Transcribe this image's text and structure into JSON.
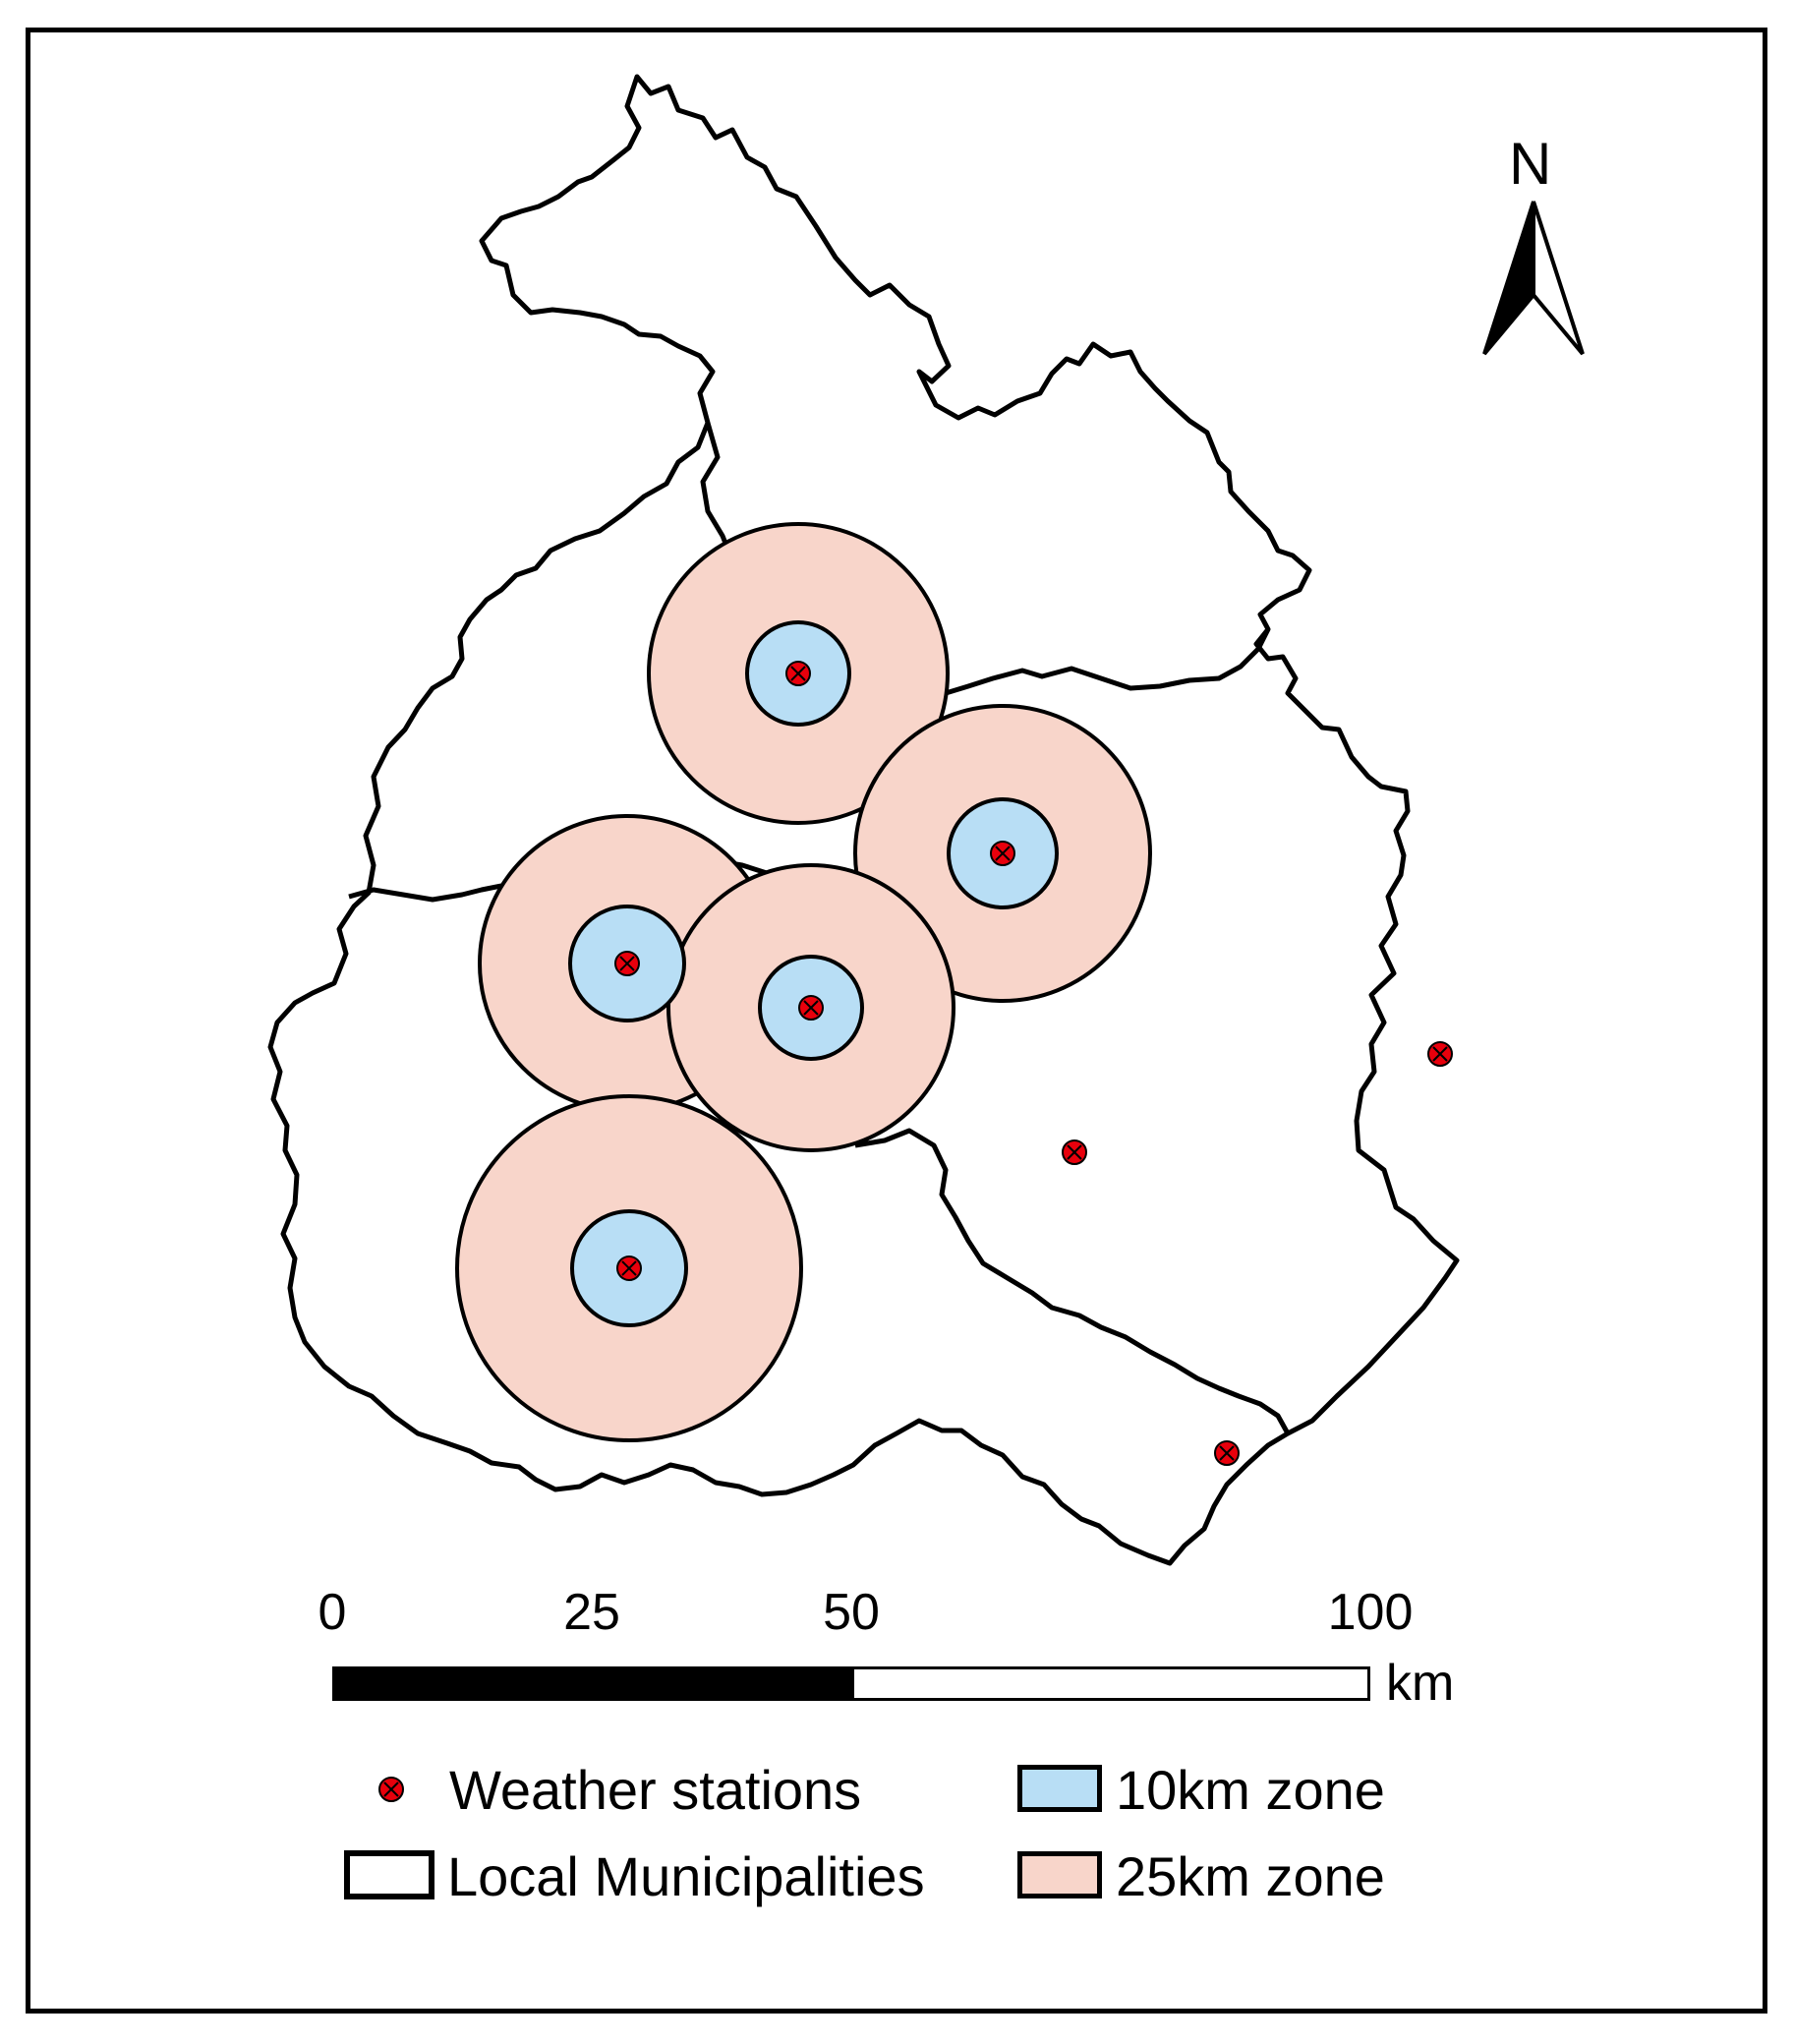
{
  "north_arrow": {
    "label": "N"
  },
  "scale_bar": {
    "ticks": [
      "0",
      "25",
      "50",
      "100"
    ],
    "unit": "km"
  },
  "legend": {
    "stations": "Weather stations",
    "zone10": "10km zone",
    "municipalities": "Local Municipalities",
    "zone25": "25km zone"
  },
  "colors": {
    "zone10": "#b8def5",
    "zone25": "#f8d5ca",
    "station": "#e8000c",
    "outline": "#000000"
  }
}
